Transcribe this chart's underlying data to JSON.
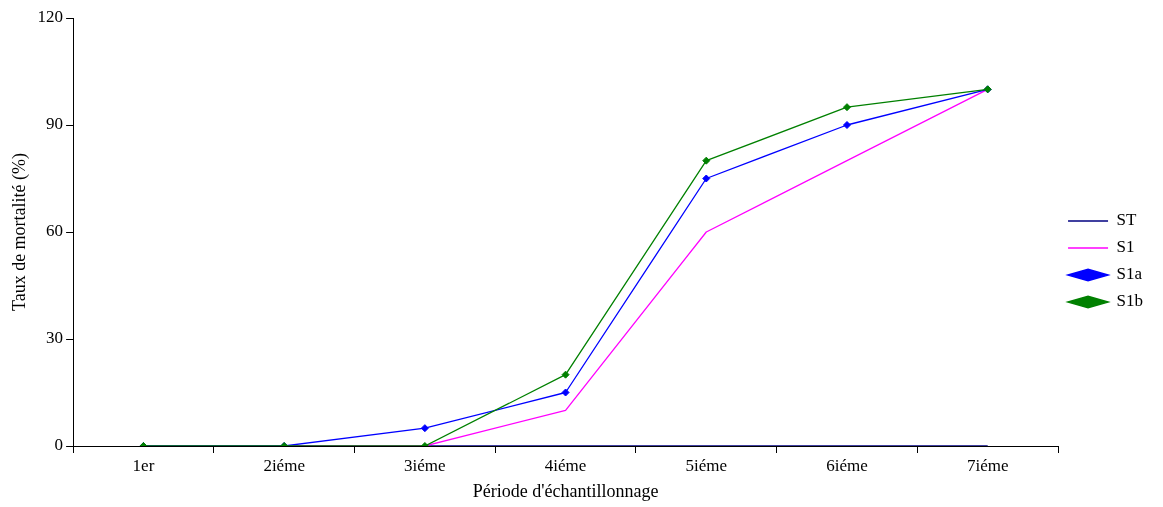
{
  "chart_data": {
    "type": "line",
    "xlabel": "Période d'échantillonnage",
    "ylabel": "Taux de mortalité (%)",
    "categories": [
      "1er",
      "2iéme",
      "3iéme",
      "4iéme",
      "5iéme",
      "6iéme",
      "7iéme"
    ],
    "series": [
      {
        "name": "ST",
        "color": "#000080",
        "marker": "none",
        "values": [
          0,
          0,
          0,
          0,
          0,
          0,
          0
        ]
      },
      {
        "name": "S1",
        "color": "#ff00ff",
        "marker": "none",
        "values": [
          0,
          0,
          0,
          10,
          60,
          80,
          100
        ]
      },
      {
        "name": "S1a",
        "color": "#0000ff",
        "marker": "diamond",
        "values": [
          0,
          0,
          5,
          15,
          75,
          90,
          100
        ]
      },
      {
        "name": "S1b",
        "color": "#008000",
        "marker": "diamond",
        "values": [
          0,
          0,
          0,
          20,
          80,
          95,
          100
        ]
      }
    ],
    "ylim": [
      0,
      120
    ],
    "yticks": [
      0,
      30,
      60,
      90,
      120
    ],
    "grid": false,
    "legend": "right",
    "line_style": "solid"
  }
}
